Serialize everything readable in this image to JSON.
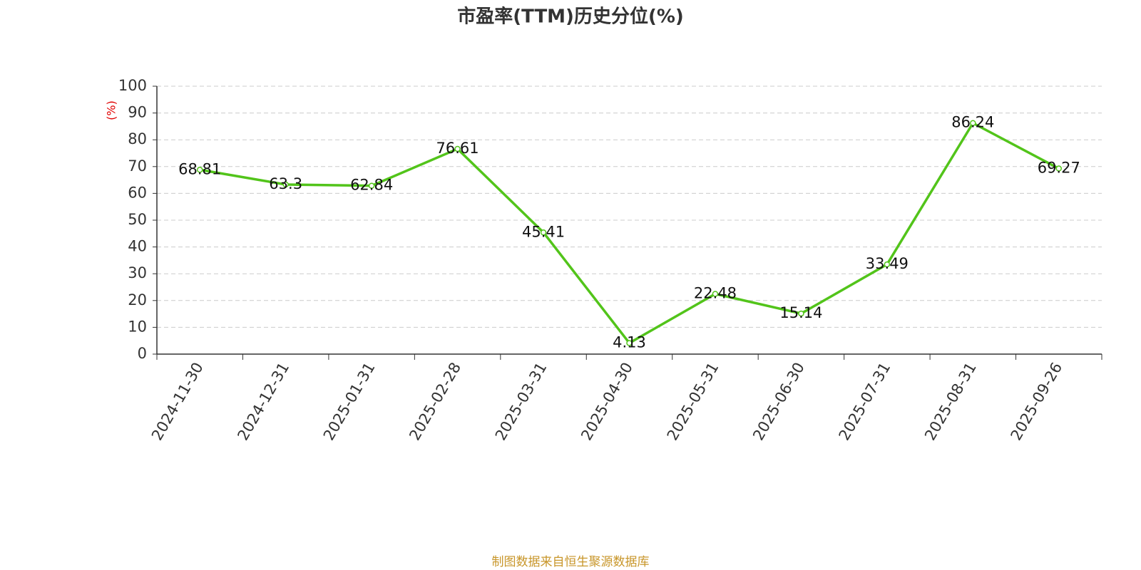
{
  "chart_data": {
    "type": "line",
    "title": "市盈率(TTM)历史分位(%)",
    "y_label": "(%)",
    "categories": [
      "2024-11-30",
      "2024-12-31",
      "2025-01-31",
      "2025-02-28",
      "2025-03-31",
      "2025-04-30",
      "2025-05-31",
      "2025-06-30",
      "2025-07-31",
      "2025-08-31",
      "2025-09-26"
    ],
    "series": [
      {
        "name": "市盈率(TTM)历史分位",
        "color": "#52c41a",
        "values": [
          68.81,
          63.3,
          62.84,
          76.61,
          45.41,
          4.13,
          22.48,
          15.14,
          33.49,
          86.24,
          69.27
        ]
      }
    ],
    "ylim": [
      0,
      100
    ],
    "yticks": [
      0,
      10,
      20,
      30,
      40,
      50,
      60,
      70,
      80,
      90,
      100
    ],
    "grid": true,
    "source": "制图数据来自恒生聚源数据库"
  }
}
